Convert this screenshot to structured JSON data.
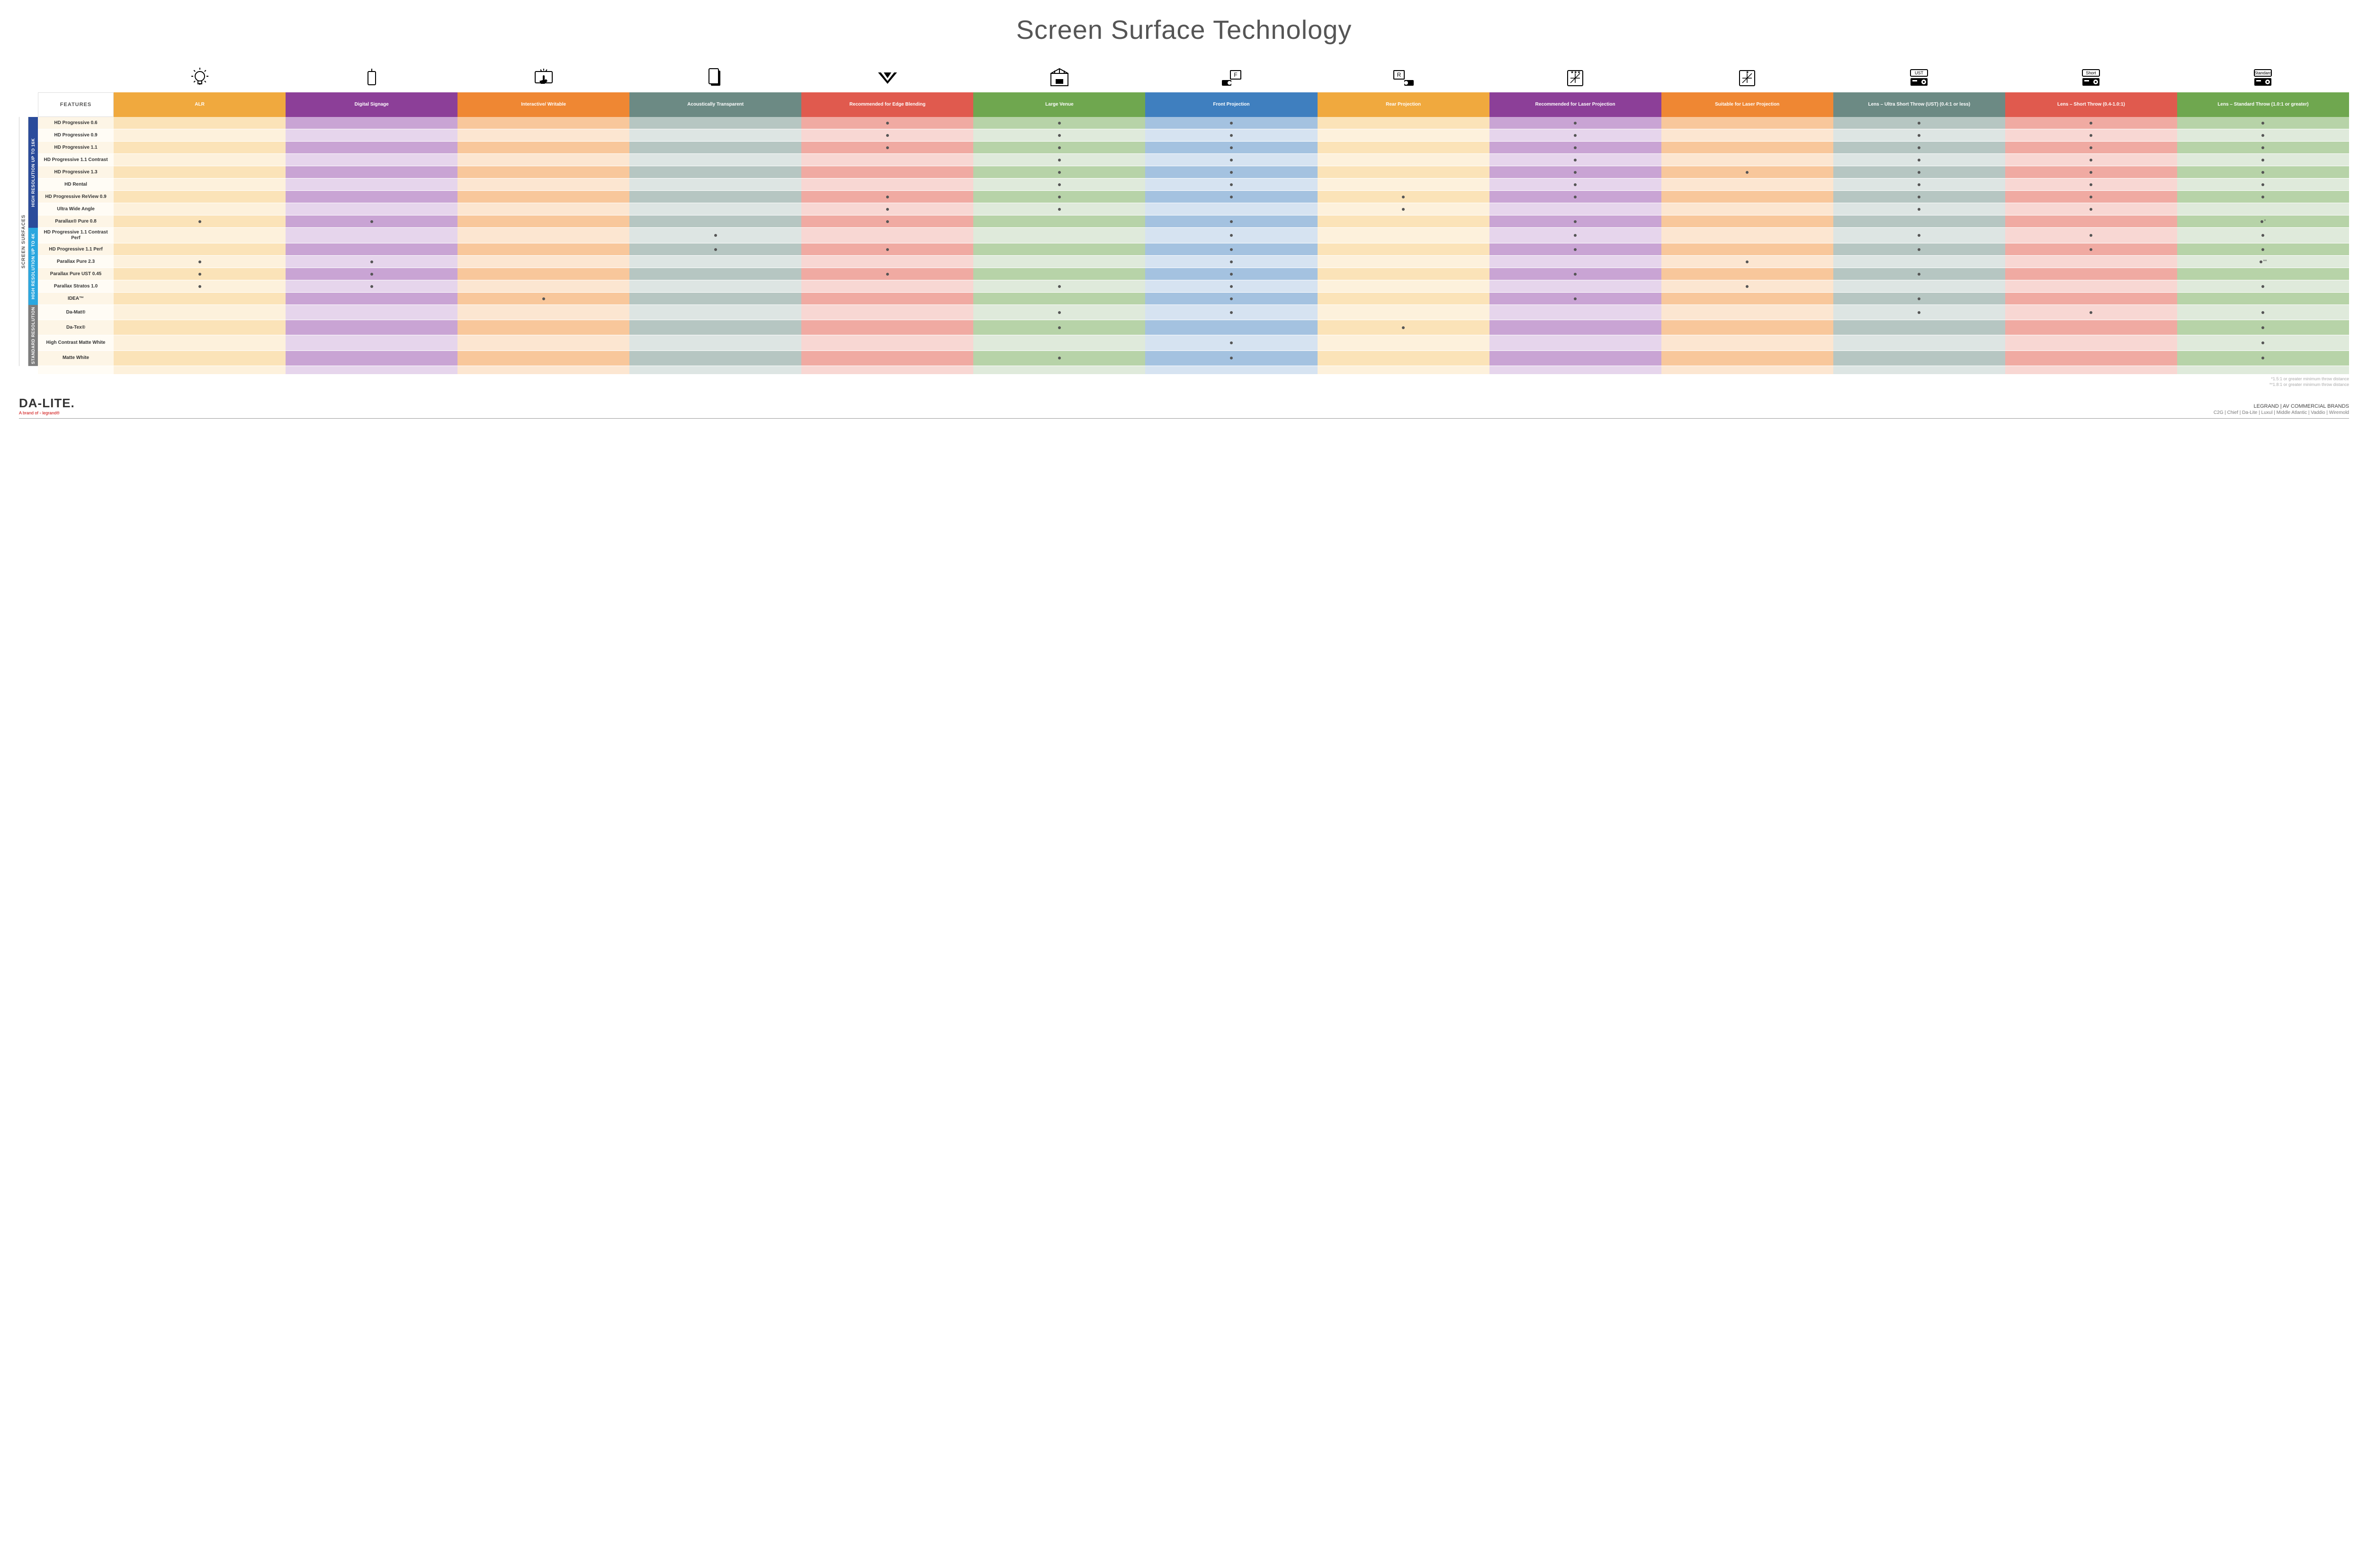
{
  "title": "Screen Surface Technology",
  "featuresLabel": "FEATURES",
  "outerSpine": "SCREEN SURFACES",
  "categories": [
    {
      "label": "HIGH RESOLUTION UP TO 16K",
      "color": "#2b4c9b",
      "rows": 9
    },
    {
      "label": "HIGH RESOLUTION UP TO 4K",
      "color": "#2aa7df",
      "rows": 6
    },
    {
      "label": "STANDARD RESOLUTION",
      "color": "#7d7d7d",
      "rows": 4
    }
  ],
  "columns": [
    {
      "key": "alr",
      "label": "ALR",
      "color": "#f0a93e",
      "light": "#fbe3b8",
      "lighter": "#fdf1dc",
      "icon": "bulb"
    },
    {
      "key": "sign",
      "label": "Digital Signage",
      "color": "#8c3f98",
      "light": "#c9a4d4",
      "lighter": "#e6d5ec",
      "icon": "signage"
    },
    {
      "key": "write",
      "label": "Interactive/ Writable",
      "color": "#ef8733",
      "light": "#f8c79b",
      "lighter": "#fce6d1",
      "icon": "touch"
    },
    {
      "key": "acous",
      "label": "Acoustically Transparent",
      "color": "#6c8a84",
      "light": "#b6c6c2",
      "lighter": "#dde5e3",
      "icon": "speaker"
    },
    {
      "key": "edge",
      "label": "Recommended for Edge Blending",
      "color": "#e05a4e",
      "light": "#f0aaa2",
      "lighter": "#f8d7d3",
      "icon": "blend"
    },
    {
      "key": "venue",
      "label": "Large Venue",
      "color": "#6fa74f",
      "light": "#b7d3a8",
      "lighter": "#dfeadb",
      "icon": "venue"
    },
    {
      "key": "front",
      "label": "Front Projection",
      "color": "#3f7fbf",
      "light": "#a4c2e0",
      "lighter": "#d6e3f1",
      "icon": "front"
    },
    {
      "key": "rear",
      "label": "Rear Projection",
      "color": "#f0a93e",
      "light": "#fbe3b8",
      "lighter": "#fdf1dc",
      "icon": "rear"
    },
    {
      "key": "rec",
      "label": "Recommended for Laser Projection",
      "color": "#8c3f98",
      "light": "#c9a4d4",
      "lighter": "#e6d5ec",
      "icon": "laserRec"
    },
    {
      "key": "suit",
      "label": "Suitable for Laser Projection",
      "color": "#ef8733",
      "light": "#f8c79b",
      "lighter": "#fce6d1",
      "icon": "laserSuit"
    },
    {
      "key": "ust",
      "label": "Lens – Ultra Short Throw (UST) (0.4:1 or less)",
      "color": "#6c8a84",
      "light": "#b6c6c2",
      "lighter": "#dde5e3",
      "icon": "projUST"
    },
    {
      "key": "short",
      "label": "Lens – Short Throw (0.4-1.0:1)",
      "color": "#e05a4e",
      "light": "#f0aaa2",
      "lighter": "#f8d7d3",
      "icon": "projShort"
    },
    {
      "key": "std",
      "label": "Lens – Standard Throw (1.0:1 or greater)",
      "color": "#6fa74f",
      "light": "#b7d3a8",
      "lighter": "#dfeadb",
      "icon": "projStd"
    }
  ],
  "rows": [
    {
      "label": "HD Progressive 0.6",
      "dots": {
        "edge": "•",
        "venue": "•",
        "front": "•",
        "rec": "•",
        "ust": "•",
        "short": "•",
        "std": "•"
      }
    },
    {
      "label": "HD Progressive 0.9",
      "dots": {
        "edge": "•",
        "venue": "•",
        "front": "•",
        "rec": "•",
        "ust": "•",
        "short": "•",
        "std": "•"
      }
    },
    {
      "label": "HD Progressive 1.1",
      "dots": {
        "edge": "•",
        "venue": "•",
        "front": "•",
        "rec": "•",
        "ust": "•",
        "short": "•",
        "std": "•"
      }
    },
    {
      "label": "HD Progressive 1.1 Contrast",
      "dots": {
        "venue": "•",
        "front": "•",
        "rec": "•",
        "ust": "•",
        "short": "•",
        "std": "•"
      }
    },
    {
      "label": "HD Progressive 1.3",
      "dots": {
        "venue": "•",
        "front": "•",
        "rec": "•",
        "suit": "•",
        "ust": "•",
        "short": "•",
        "std": "•"
      }
    },
    {
      "label": "HD Rental",
      "dots": {
        "venue": "•",
        "front": "•",
        "rec": "•",
        "ust": "•",
        "short": "•",
        "std": "•"
      }
    },
    {
      "label": "HD Progressive ReView 0.9",
      "dots": {
        "edge": "•",
        "venue": "•",
        "front": "•",
        "rear": "•",
        "rec": "•",
        "ust": "•",
        "short": "•",
        "std": "•"
      }
    },
    {
      "label": "Ultra Wide Angle",
      "dots": {
        "edge": "•",
        "venue": "•",
        "rear": "•",
        "ust": "•",
        "short": "•"
      }
    },
    {
      "label": "Parallax® Pure 0.8",
      "dots": {
        "alr": "•",
        "sign": "•",
        "edge": "•",
        "front": "•",
        "rec": "•",
        "std": "•*"
      }
    },
    {
      "label": "HD Progressive 1.1 Contrast Perf",
      "dots": {
        "acous": "•",
        "front": "•",
        "rec": "•",
        "ust": "•",
        "short": "•",
        "std": "•"
      }
    },
    {
      "label": "HD Progressive 1.1 Perf",
      "dots": {
        "acous": "•",
        "edge": "•",
        "front": "•",
        "rec": "•",
        "ust": "•",
        "short": "•",
        "std": "•"
      }
    },
    {
      "label": "Parallax Pure 2.3",
      "dots": {
        "alr": "•",
        "sign": "•",
        "front": "•",
        "suit": "•",
        "std": "•**"
      }
    },
    {
      "label": "Parallax Pure UST 0.45",
      "dots": {
        "alr": "•",
        "sign": "•",
        "edge": "•",
        "front": "•",
        "rec": "•",
        "ust": "•"
      }
    },
    {
      "label": "Parallax Stratos 1.0",
      "dots": {
        "alr": "•",
        "sign": "•",
        "venue": "•",
        "front": "•",
        "suit": "•",
        "std": "•"
      }
    },
    {
      "label": "IDEA™",
      "dots": {
        "write": "•",
        "front": "•",
        "rec": "•",
        "ust": "•"
      }
    },
    {
      "label": "Da-Mat®",
      "dots": {
        "venue": "•",
        "front": "•",
        "ust": "•",
        "short": "•",
        "std": "•"
      }
    },
    {
      "label": "Da-Tex®",
      "dots": {
        "venue": "•",
        "rear": "•",
        "std": "•"
      }
    },
    {
      "label": "High Contrast Matte White",
      "dots": {
        "front": "•",
        "std": "•"
      }
    },
    {
      "label": "Matte White",
      "dots": {
        "venue": "•",
        "front": "•",
        "std": "•"
      }
    }
  ],
  "footnotes": [
    "*1.5:1 or greater minimum throw distance",
    "**1.8:1 or greater minimum throw distance"
  ],
  "footer": {
    "brandMain": "DA-LITE.",
    "brandSub": "A brand of ▫ legrand®",
    "rightTitle": "LEGRAND | AV COMMERCIAL BRANDS",
    "rightBrands": "C2G  |  Chief  |  Da-Lite  |  Luxul  |  Middle Atlantic  |  Vaddio  |  Wiremold"
  },
  "rowLabelColors": {
    "light": "#fdf5e6",
    "lighter": "#fffcf5"
  }
}
